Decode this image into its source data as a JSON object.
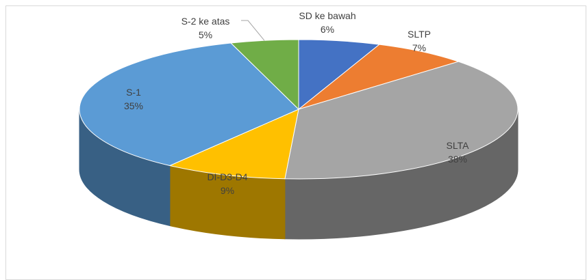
{
  "chart_data": {
    "type": "pie3d",
    "categories": [
      "SD ke bawah",
      "SLTP",
      "SLTA",
      "DI-D3-D4",
      "S-1",
      "S-2 ke atas"
    ],
    "values": [
      6,
      7,
      38,
      9,
      35,
      5
    ],
    "value_labels": [
      "6%",
      "7%",
      "38%",
      "9%",
      "35%",
      "5%"
    ],
    "colors": [
      "#4472c4",
      "#ed7d31",
      "#a5a5a5",
      "#ffc000",
      "#5b9bd5",
      "#70ad47"
    ]
  }
}
